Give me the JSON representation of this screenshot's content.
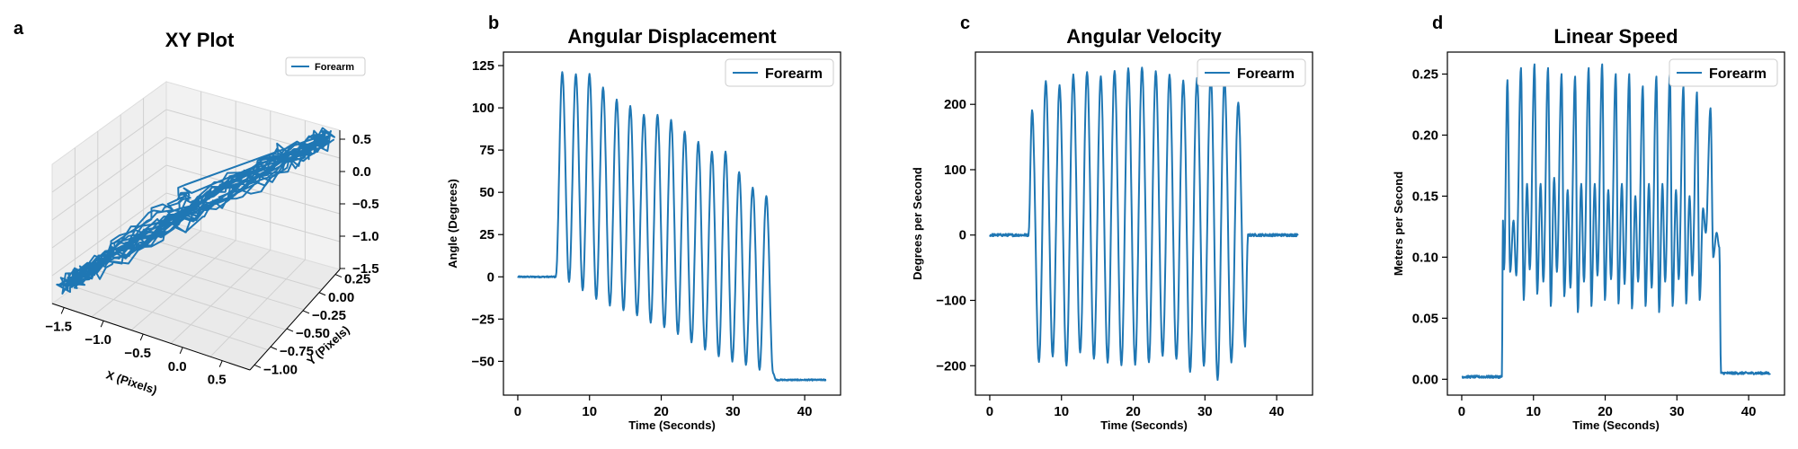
{
  "figure": {
    "series_color": "#1f77b4"
  },
  "chart_data": [
    {
      "panel": "a",
      "type": "line",
      "projection": "3d",
      "title": "XY Plot",
      "xlabel": "X (Pixels)",
      "ylabel": "Y (Pixels)",
      "zlabel": "",
      "legend": "Forearm",
      "legend_position": "top-right",
      "x_ticks": [
        "−1.5",
        "−1.0",
        "−0.5",
        "0.0",
        "0.5"
      ],
      "y_ticks": [
        "−1.00",
        "−0.75",
        "−0.50",
        "−0.25",
        "0.00",
        "0.25"
      ],
      "z_ticks": [
        "0.5",
        "0.0",
        "−0.5",
        "−1.0",
        "−1.5"
      ],
      "xlim": [
        -1.6,
        0.8
      ],
      "ylim": [
        -1.05,
        0.35
      ],
      "zlim": [
        -1.5,
        0.6
      ],
      "series": [
        {
          "name": "Forearm",
          "x": [
            -0.55,
            -0.6,
            -0.9,
            -1.3,
            -1.5,
            -1.2,
            -0.8,
            -0.3,
            0.2,
            0.6,
            0.75,
            0.5,
            0.0,
            -0.5,
            -1.0,
            -1.4,
            -1.55,
            -1.1,
            -0.6,
            -0.1,
            0.3,
            0.7,
            0.72,
            0.4,
            -0.1,
            -0.7,
            -1.2,
            -1.45,
            -1.3,
            -0.8,
            -0.2,
            0.35,
            0.7,
            0.6,
            0.1,
            -0.4,
            -1.0,
            -1.35,
            -1.5,
            -1.0,
            -0.4,
            0.2,
            0.65,
            0.75
          ],
          "y": [
            -0.3,
            -0.35,
            -0.55,
            -0.8,
            -0.95,
            -0.75,
            -0.5,
            -0.2,
            0.05,
            0.2,
            0.25,
            0.1,
            -0.15,
            -0.4,
            -0.65,
            -0.9,
            -0.98,
            -0.7,
            -0.45,
            -0.15,
            0.05,
            0.22,
            0.24,
            0.05,
            -0.2,
            -0.5,
            -0.78,
            -0.92,
            -0.85,
            -0.55,
            -0.2,
            0.1,
            0.22,
            0.15,
            -0.1,
            -0.35,
            -0.68,
            -0.88,
            -0.95,
            -0.6,
            -0.3,
            0.0,
            0.2,
            0.25
          ],
          "z": [
            -0.2,
            -0.3,
            -0.6,
            -1.1,
            -1.3,
            -1.0,
            -0.6,
            -0.2,
            0.2,
            0.5,
            0.55,
            0.3,
            -0.1,
            -0.5,
            -0.9,
            -1.2,
            -1.35,
            -0.95,
            -0.5,
            -0.05,
            0.3,
            0.52,
            0.5,
            0.2,
            -0.2,
            -0.7,
            -1.05,
            -1.3,
            -1.15,
            -0.7,
            -0.15,
            0.3,
            0.5,
            0.4,
            0.0,
            -0.45,
            -0.95,
            -1.2,
            -1.3,
            -0.85,
            -0.35,
            0.15,
            0.45,
            0.55
          ]
        }
      ]
    },
    {
      "panel": "b",
      "type": "line",
      "title": "Angular Displacement",
      "xlabel": "Time (Seconds)",
      "ylabel": "Angle (Degrees)",
      "legend_position": "top-right",
      "xlim": [
        -2,
        45
      ],
      "ylim": [
        -70,
        133
      ],
      "x_ticks": [
        0,
        10,
        20,
        30,
        40
      ],
      "y_ticks": [
        -50,
        -25,
        0,
        25,
        50,
        75,
        100,
        125
      ],
      "series": [
        {
          "name": "Forearm",
          "noise": 0.4,
          "oscillation": {
            "baseline_start": 0,
            "baseline_end": -61,
            "start": 5.3,
            "end": 35.6,
            "first_peak": 6.2,
            "cycles": 16,
            "peaks": [
              121,
              120,
              120,
              112,
              105,
              101,
              96,
              96,
              93,
              86,
              80,
              74,
              74,
              62,
              53,
              48
            ],
            "troughs": [
              -3,
              -8,
              -13,
              -17,
              -20,
              -23,
              -27,
              -30,
              -34,
              -39,
              -43,
              -47,
              -50,
              -52,
              -55,
              -57
            ]
          }
        }
      ]
    },
    {
      "panel": "c",
      "type": "line",
      "title": "Angular Velocity",
      "xlabel": "Time (Seconds)",
      "ylabel": "Degrees per Second",
      "legend_position": "top-right",
      "xlim": [
        -2,
        45
      ],
      "ylim": [
        -245,
        280
      ],
      "x_ticks": [
        0,
        10,
        20,
        30,
        40
      ],
      "y_ticks": [
        -200,
        -100,
        0,
        100,
        200
      ],
      "series": [
        {
          "name": "Forearm",
          "noise": 2,
          "oscillation": {
            "baseline_start": 0,
            "baseline_end": 0,
            "start": 5.4,
            "end": 35.6,
            "first_peak": 5.9,
            "cycles": 16,
            "peaks": [
              192,
              235,
              230,
              245,
              250,
              242,
              252,
              255,
              257,
              250,
              245,
              237,
              240,
              245,
              240,
              203
            ],
            "troughs": [
              -195,
              -185,
              -200,
              -180,
              -190,
              -195,
              -200,
              -198,
              -195,
              -185,
              -190,
              -210,
              -200,
              -222,
              -195,
              -170
            ]
          }
        }
      ]
    },
    {
      "panel": "d",
      "type": "line",
      "title": "Linear Speed",
      "xlabel": "Time (Seconds)",
      "ylabel": "Meters per Second",
      "legend_position": "top-right",
      "xlim": [
        -2,
        45
      ],
      "ylim": [
        -0.013,
        0.268
      ],
      "x_ticks": [
        0,
        10,
        20,
        30,
        40
      ],
      "y_ticks": [
        0.0,
        0.05,
        0.1,
        0.15,
        0.2,
        0.25
      ],
      "y_tick_labels": [
        "0.00",
        "0.05",
        "0.10",
        "0.15",
        "0.20",
        "0.25"
      ],
      "series": [
        {
          "name": "Forearm",
          "noise": 0.001,
          "speed": {
            "baseline_start": 0.002,
            "baseline_end": 0.005,
            "start": 5.6,
            "end": 35.8,
            "cycles": 16,
            "big_peaks": [
              0.245,
              0.255,
              0.258,
              0.255,
              0.25,
              0.248,
              0.255,
              0.258,
              0.25,
              0.25,
              0.24,
              0.248,
              0.25,
              0.24,
              0.235,
              0.222
            ],
            "small_peaks": [
              0.13,
              0.16,
              0.16,
              0.165,
              0.155,
              0.16,
              0.16,
              0.155,
              0.16,
              0.15,
              0.16,
              0.16,
              0.155,
              0.15,
              0.14,
              0.12
            ],
            "minima": [
              0.088,
              0.065,
              0.07,
              0.06,
              0.068,
              0.055,
              0.06,
              0.065,
              0.062,
              0.058,
              0.06,
              0.055,
              0.06,
              0.062,
              0.065,
              0.1
            ]
          }
        }
      ]
    }
  ]
}
